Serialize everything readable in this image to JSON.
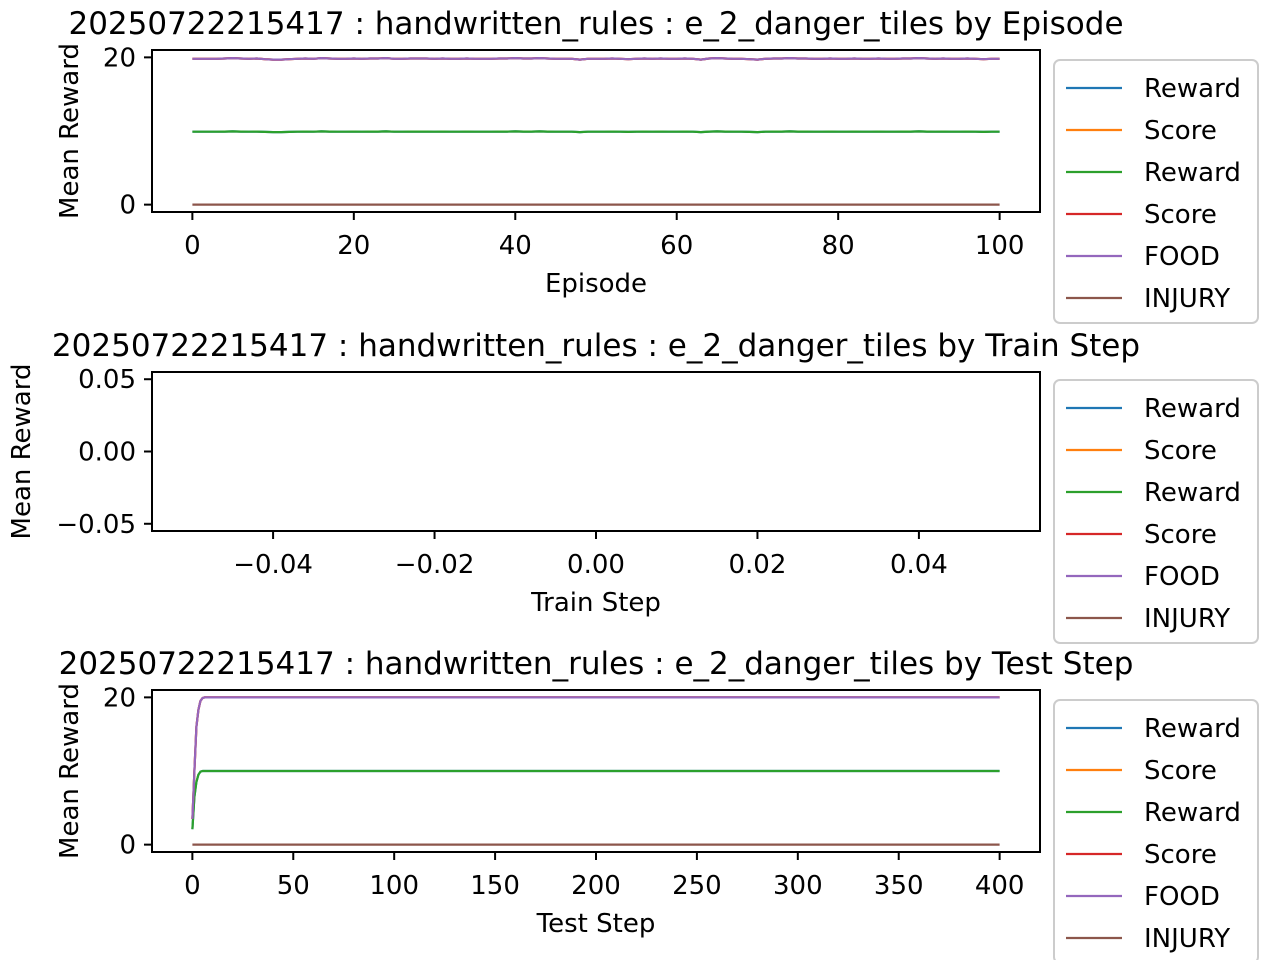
{
  "colors": {
    "Reward": "#1f77b4",
    "Score": "#ff7f0e",
    "Reward2": "#2ca02c",
    "Score2": "#d62728",
    "FOOD": "#9467bd",
    "INJURY": "#8c564b"
  },
  "chart_data": [
    {
      "type": "line",
      "title": "20250722215417 : handwritten_rules : e_2_danger_tiles by Episode",
      "xlabel": "Episode",
      "ylabel": "Mean Reward",
      "xlim": [
        -5,
        105
      ],
      "ylim": [
        -1,
        21
      ],
      "xticks": [
        0,
        20,
        40,
        60,
        80,
        100
      ],
      "yticks": [
        0,
        20
      ],
      "xtick_labels": [
        "0",
        "20",
        "40",
        "60",
        "80",
        "100"
      ],
      "ytick_labels": [
        "0",
        "20"
      ],
      "legend": "right",
      "x_range": [
        0,
        100
      ],
      "series": [
        {
          "name": "Reward",
          "color": "#1f77b4",
          "ref": "reward"
        },
        {
          "name": "Score",
          "color": "#ff7f0e",
          "ref": "score"
        },
        {
          "name": "Reward",
          "color": "#2ca02c",
          "ref": "reward"
        },
        {
          "name": "Score",
          "color": "#d62728",
          "ref": "score"
        },
        {
          "name": "FOOD",
          "color": "#9467bd",
          "ref": "score"
        },
        {
          "name": "INJURY",
          "color": "#8c564b",
          "ref": "injury"
        }
      ],
      "values": {
        "score": [
          19.8,
          19.8,
          19.8,
          19.8,
          19.85,
          19.9,
          19.85,
          19.8,
          19.85,
          19.75,
          19.7,
          19.7,
          19.75,
          19.8,
          19.85,
          19.8,
          19.9,
          19.85,
          19.8,
          19.8,
          19.85,
          19.8,
          19.85,
          19.85,
          19.9,
          19.8,
          19.8,
          19.85,
          19.85,
          19.85,
          19.8,
          19.85,
          19.8,
          19.8,
          19.85,
          19.8,
          19.8,
          19.8,
          19.85,
          19.85,
          19.9,
          19.85,
          19.85,
          19.9,
          19.85,
          19.8,
          19.8,
          19.8,
          19.7,
          19.8,
          19.8,
          19.8,
          19.85,
          19.8,
          19.75,
          19.8,
          19.85,
          19.8,
          19.85,
          19.8,
          19.8,
          19.85,
          19.8,
          19.7,
          19.85,
          19.9,
          19.85,
          19.8,
          19.8,
          19.75,
          19.7,
          19.8,
          19.85,
          19.85,
          19.9,
          19.85,
          19.85,
          19.8,
          19.8,
          19.85,
          19.8,
          19.8,
          19.85,
          19.8,
          19.8,
          19.85,
          19.8,
          19.8,
          19.85,
          19.85,
          19.9,
          19.85,
          19.8,
          19.85,
          19.8,
          19.8,
          19.85,
          19.8,
          19.75,
          19.8,
          19.8
        ],
        "reward": [
          9.9,
          9.9,
          9.9,
          9.9,
          9.92,
          9.95,
          9.92,
          9.9,
          9.92,
          9.88,
          9.85,
          9.85,
          9.88,
          9.9,
          9.92,
          9.9,
          9.95,
          9.92,
          9.9,
          9.9,
          9.92,
          9.9,
          9.92,
          9.92,
          9.95,
          9.9,
          9.9,
          9.92,
          9.92,
          9.92,
          9.9,
          9.92,
          9.9,
          9.9,
          9.92,
          9.9,
          9.9,
          9.9,
          9.92,
          9.92,
          9.95,
          9.92,
          9.92,
          9.95,
          9.92,
          9.9,
          9.9,
          9.9,
          9.85,
          9.9,
          9.9,
          9.9,
          9.92,
          9.9,
          9.88,
          9.9,
          9.92,
          9.9,
          9.92,
          9.9,
          9.9,
          9.92,
          9.9,
          9.85,
          9.92,
          9.95,
          9.92,
          9.9,
          9.9,
          9.88,
          9.85,
          9.9,
          9.92,
          9.92,
          9.95,
          9.92,
          9.92,
          9.9,
          9.9,
          9.92,
          9.9,
          9.9,
          9.92,
          9.9,
          9.9,
          9.92,
          9.9,
          9.9,
          9.92,
          9.92,
          9.95,
          9.92,
          9.9,
          9.92,
          9.9,
          9.9,
          9.92,
          9.9,
          9.88,
          9.9,
          9.9
        ],
        "injury": [
          0,
          0
        ]
      }
    },
    {
      "type": "line",
      "title": "20250722215417 : handwritten_rules : e_2_danger_tiles by Train Step",
      "xlabel": "Train Step",
      "ylabel": "Mean Reward",
      "xlim": [
        -0.055,
        0.055
      ],
      "ylim": [
        -0.055,
        0.055
      ],
      "xticks": [
        -0.04,
        -0.02,
        0.0,
        0.02,
        0.04
      ],
      "yticks": [
        0.05,
        0.0,
        -0.05
      ],
      "xtick_labels": [
        "−0.04",
        "−0.02",
        "0.00",
        "0.02",
        "0.04"
      ],
      "ytick_labels": [
        "0.05",
        "0.00",
        "−0.05"
      ],
      "legend": "right",
      "series": [
        {
          "name": "Reward",
          "color": "#1f77b4"
        },
        {
          "name": "Score",
          "color": "#ff7f0e"
        },
        {
          "name": "Reward",
          "color": "#2ca02c"
        },
        {
          "name": "Score",
          "color": "#d62728"
        },
        {
          "name": "FOOD",
          "color": "#9467bd"
        },
        {
          "name": "INJURY",
          "color": "#8c564b"
        }
      ]
    },
    {
      "type": "line",
      "title": "20250722215417 : handwritten_rules : e_2_danger_tiles by Test Step",
      "xlabel": "Test Step",
      "ylabel": "Mean Reward",
      "xlim": [
        -20,
        420
      ],
      "ylim": [
        -1,
        21
      ],
      "xticks": [
        0,
        50,
        100,
        150,
        200,
        250,
        300,
        350,
        400
      ],
      "yticks": [
        0,
        20
      ],
      "xtick_labels": [
        "0",
        "50",
        "100",
        "150",
        "200",
        "250",
        "300",
        "350",
        "400"
      ],
      "ytick_labels": [
        "0",
        "20"
      ],
      "legend": "right",
      "x": [
        0,
        1,
        2,
        3,
        4,
        5,
        6,
        400
      ],
      "series": [
        {
          "name": "Reward",
          "color": "#1f77b4",
          "values": [
            2.1,
            6.5,
            8.5,
            9.5,
            9.9,
            10,
            10,
            10
          ]
        },
        {
          "name": "Score",
          "color": "#ff7f0e",
          "values": [
            3.5,
            10,
            16,
            18.3,
            19.5,
            19.9,
            20,
            20
          ]
        },
        {
          "name": "Reward",
          "color": "#2ca02c",
          "values": [
            2.1,
            6.5,
            8.5,
            9.5,
            9.9,
            10,
            10,
            10
          ]
        },
        {
          "name": "Score",
          "color": "#d62728",
          "values": [
            3.5,
            10,
            16,
            18.3,
            19.5,
            19.9,
            20,
            20
          ]
        },
        {
          "name": "FOOD",
          "color": "#9467bd",
          "values": [
            3.5,
            10,
            16,
            18.3,
            19.5,
            19.9,
            20,
            20
          ]
        },
        {
          "name": "INJURY",
          "color": "#8c564b",
          "values": [
            0,
            0,
            0,
            0,
            0,
            0,
            0,
            0
          ]
        }
      ]
    }
  ]
}
